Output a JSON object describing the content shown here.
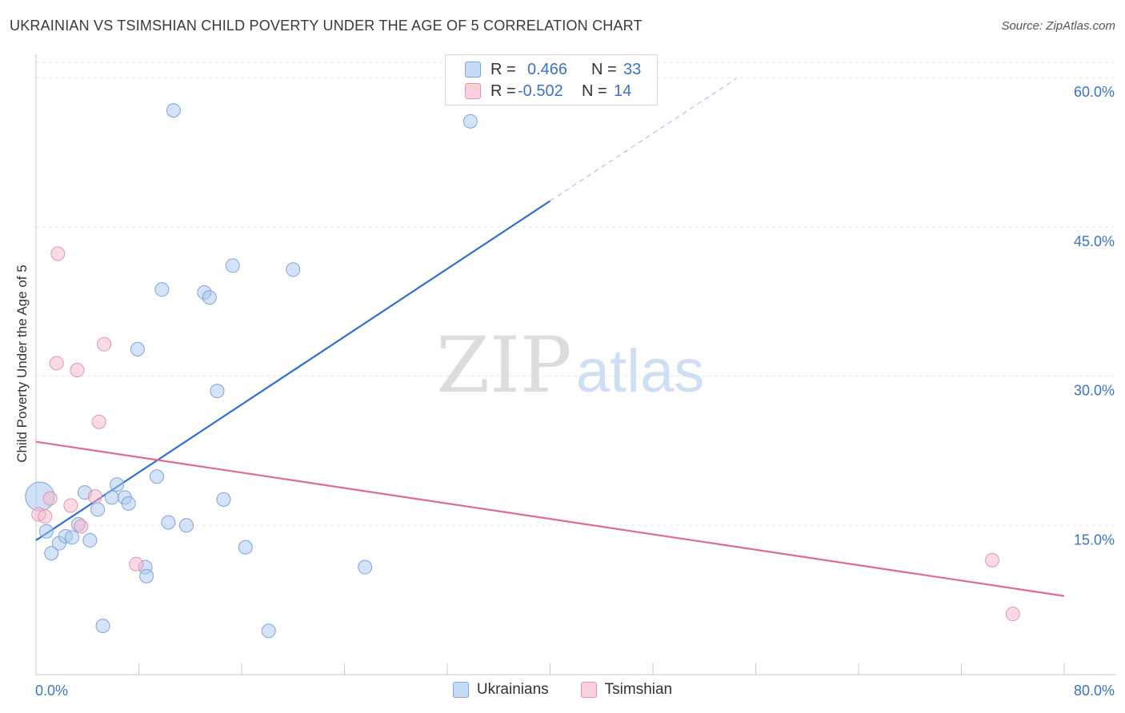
{
  "header": {
    "title": "UKRAINIAN VS TSIMSHIAN CHILD POVERTY UNDER THE AGE OF 5 CORRELATION CHART",
    "source": "Source: ZipAtlas.com"
  },
  "legend": {
    "rows": [
      {
        "r_label": "R =",
        "r_value": "0.466",
        "n_label": "N =",
        "n_value": "33",
        "color": "#a9c8f0"
      },
      {
        "r_label": "R =",
        "r_value": "-0.502",
        "n_label": "N =",
        "n_value": "14",
        "color": "#f5b8cb"
      }
    ]
  },
  "watermark": {
    "zip": "ZIP",
    "atlas": "atlas"
  },
  "chart_data": {
    "type": "scatter",
    "title": "UKRAINIAN VS TSIMSHIAN CHILD POVERTY UNDER THE AGE OF 5 CORRELATION CHART",
    "xlabel": "",
    "ylabel": "Child Poverty Under the Age of 5",
    "xlim": [
      0,
      80
    ],
    "ylim": [
      0,
      60
    ],
    "x_tick_labels": [
      "0.0%",
      "80.0%"
    ],
    "y_ticks": [
      15,
      30,
      45,
      60
    ],
    "y_tick_labels": [
      "15.0%",
      "30.0%",
      "45.0%",
      "60.0%"
    ],
    "grid": true,
    "legend_position": "bottom-center",
    "series": [
      {
        "name": "Ukrainians",
        "color": "#a9c8f0",
        "edge": "#7aa6dd",
        "line_color": "#2e6fd0",
        "points": [
          [
            0.3,
            17.9
          ],
          [
            0.8,
            14.4
          ],
          [
            1.2,
            12.2
          ],
          [
            1.8,
            13.2
          ],
          [
            2.3,
            13.9
          ],
          [
            2.8,
            13.8
          ],
          [
            3.3,
            15.1
          ],
          [
            3.8,
            18.3
          ],
          [
            4.2,
            13.5
          ],
          [
            4.8,
            16.6
          ],
          [
            5.2,
            4.9
          ],
          [
            5.9,
            17.8
          ],
          [
            6.3,
            19.1
          ],
          [
            6.9,
            17.8
          ],
          [
            7.2,
            17.2
          ],
          [
            7.9,
            32.7
          ],
          [
            8.5,
            10.8
          ],
          [
            8.6,
            9.9
          ],
          [
            9.4,
            19.9
          ],
          [
            9.8,
            38.7
          ],
          [
            10.3,
            15.3
          ],
          [
            10.7,
            56.7
          ],
          [
            11.7,
            15.0
          ],
          [
            13.1,
            38.4
          ],
          [
            13.5,
            37.9
          ],
          [
            14.1,
            28.5
          ],
          [
            14.6,
            17.6
          ],
          [
            15.3,
            41.1
          ],
          [
            16.3,
            12.8
          ],
          [
            18.1,
            4.4
          ],
          [
            20.0,
            40.7
          ],
          [
            25.6,
            10.8
          ],
          [
            33.8,
            55.6
          ]
        ],
        "trend": {
          "x": [
            0,
            40
          ],
          "y": [
            13.5,
            47.6
          ],
          "dashed_to": [
            54.5,
            59.9
          ]
        }
      },
      {
        "name": "Tsimshian",
        "color": "#f5b8cb",
        "edge": "#e493ac",
        "line_color": "#e06a93",
        "points": [
          [
            0.2,
            16.1
          ],
          [
            0.7,
            15.9
          ],
          [
            1.1,
            17.7
          ],
          [
            1.6,
            31.3
          ],
          [
            1.7,
            42.3
          ],
          [
            2.7,
            17.0
          ],
          [
            3.2,
            30.6
          ],
          [
            3.5,
            14.9
          ],
          [
            4.6,
            17.9
          ],
          [
            4.9,
            25.4
          ],
          [
            5.3,
            33.2
          ],
          [
            7.8,
            11.1
          ],
          [
            74.4,
            11.5
          ],
          [
            76.0,
            6.1
          ]
        ],
        "trend": {
          "x": [
            0,
            80
          ],
          "y": [
            23.4,
            7.9
          ]
        }
      }
    ]
  }
}
